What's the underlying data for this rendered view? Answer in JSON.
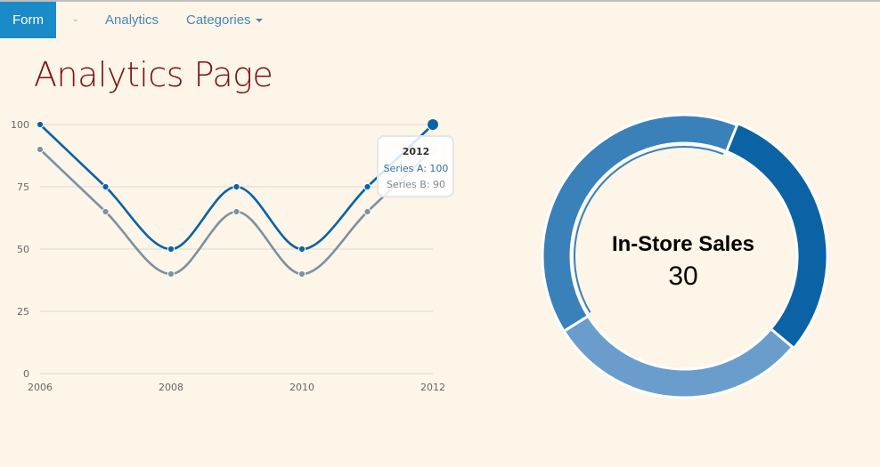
{
  "nav": {
    "items": [
      {
        "label": "Form",
        "active": true
      },
      {
        "label": "-"
      },
      {
        "label": "Analytics"
      },
      {
        "label": "Categories"
      }
    ]
  },
  "page": {
    "title": "Analytics Page"
  },
  "chart_data": [
    {
      "type": "line",
      "x": [
        2006,
        2007,
        2008,
        2009,
        2010,
        2011,
        2012
      ],
      "x_ticks": [
        "2006",
        "2008",
        "2010",
        "2012"
      ],
      "y_ticks": [
        "0",
        "25",
        "50",
        "75",
        "100"
      ],
      "ylim": [
        0,
        100
      ],
      "xlim": [
        2006,
        2012
      ],
      "grid": true,
      "series": [
        {
          "name": "Series A",
          "values": [
            100,
            75,
            50,
            75,
            50,
            75,
            100
          ],
          "color": "#0b62a4"
        },
        {
          "name": "Series B",
          "values": [
            90,
            65,
            40,
            65,
            40,
            65,
            90
          ],
          "color": "#7a92a3"
        }
      ],
      "tooltip": {
        "title": "2012",
        "lines": [
          "Series A: 100",
          "Series B: 90"
        ]
      }
    },
    {
      "type": "pie",
      "donut": true,
      "center_label": "In-Store Sales",
      "center_value": "30",
      "slices": [
        {
          "value": 30,
          "color": "#0b62a4"
        },
        {
          "value": 30,
          "color": "#6a9dcc"
        },
        {
          "value": 40,
          "color": "#3a80b9"
        }
      ],
      "highlighted_index": 0
    }
  ]
}
